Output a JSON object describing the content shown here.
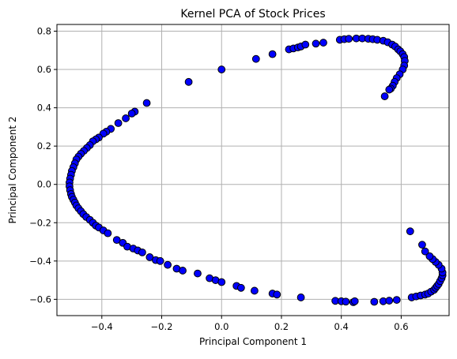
{
  "chart_data": {
    "type": "scatter",
    "title": "Kernel PCA of Stock Prices",
    "xlabel": "Principal Component 1",
    "ylabel": "Principal Component 2",
    "xlim": [
      -0.55,
      0.76
    ],
    "ylim": [
      -0.685,
      0.835
    ],
    "xticks": [
      -0.4,
      -0.2,
      0.0,
      0.2,
      0.4,
      0.6
    ],
    "xtick_labels": [
      "−0.4",
      "−0.2",
      "0.0",
      "0.2",
      "0.4",
      "0.6"
    ],
    "yticks": [
      -0.6,
      -0.4,
      -0.2,
      0.0,
      0.2,
      0.4,
      0.6,
      0.8
    ],
    "ytick_labels": [
      "−0.6",
      "−0.4",
      "−0.2",
      "0.0",
      "0.2",
      "0.4",
      "0.6",
      "0.8"
    ],
    "grid": true,
    "marker_color": "#0000ff",
    "marker_edge_color": "#000000",
    "points": [
      [
        0.0,
        0.6
      ],
      [
        -0.11,
        0.535
      ],
      [
        -0.25,
        0.425
      ],
      [
        -0.29,
        0.38
      ],
      [
        -0.3,
        0.37
      ],
      [
        -0.32,
        0.345
      ],
      [
        -0.345,
        0.32
      ],
      [
        -0.37,
        0.29
      ],
      [
        -0.385,
        0.275
      ],
      [
        -0.395,
        0.265
      ],
      [
        -0.41,
        0.245
      ],
      [
        -0.42,
        0.235
      ],
      [
        -0.43,
        0.225
      ],
      [
        -0.44,
        0.205
      ],
      [
        -0.45,
        0.19
      ],
      [
        -0.46,
        0.175
      ],
      [
        -0.47,
        0.16
      ],
      [
        -0.478,
        0.145
      ],
      [
        -0.485,
        0.13
      ],
      [
        -0.49,
        0.11
      ],
      [
        -0.495,
        0.09
      ],
      [
        -0.5,
        0.07
      ],
      [
        -0.503,
        0.05
      ],
      [
        -0.506,
        0.03
      ],
      [
        -0.508,
        0.01
      ],
      [
        -0.508,
        -0.01
      ],
      [
        -0.506,
        -0.03
      ],
      [
        -0.503,
        -0.05
      ],
      [
        -0.5,
        -0.065
      ],
      [
        -0.495,
        -0.08
      ],
      [
        -0.49,
        -0.095
      ],
      [
        -0.485,
        -0.11
      ],
      [
        -0.478,
        -0.125
      ],
      [
        -0.47,
        -0.14
      ],
      [
        -0.462,
        -0.155
      ],
      [
        -0.452,
        -0.17
      ],
      [
        -0.44,
        -0.185
      ],
      [
        -0.43,
        -0.2
      ],
      [
        -0.42,
        -0.215
      ],
      [
        -0.41,
        -0.225
      ],
      [
        -0.395,
        -0.24
      ],
      [
        -0.38,
        -0.255
      ],
      [
        -0.35,
        -0.29
      ],
      [
        -0.33,
        -0.305
      ],
      [
        -0.315,
        -0.325
      ],
      [
        -0.295,
        -0.335
      ],
      [
        -0.28,
        -0.345
      ],
      [
        -0.265,
        -0.355
      ],
      [
        -0.24,
        -0.38
      ],
      [
        -0.22,
        -0.395
      ],
      [
        -0.205,
        -0.4
      ],
      [
        -0.18,
        -0.42
      ],
      [
        -0.15,
        -0.44
      ],
      [
        -0.13,
        -0.45
      ],
      [
        -0.08,
        -0.465
      ],
      [
        -0.04,
        -0.49
      ],
      [
        -0.02,
        -0.5
      ],
      [
        0.0,
        -0.51
      ],
      [
        0.05,
        -0.53
      ],
      [
        0.065,
        -0.54
      ],
      [
        0.11,
        -0.555
      ],
      [
        0.17,
        -0.57
      ],
      [
        0.185,
        -0.575
      ],
      [
        0.265,
        -0.59
      ],
      [
        0.38,
        -0.608
      ],
      [
        0.4,
        -0.61
      ],
      [
        0.415,
        -0.612
      ],
      [
        0.44,
        -0.615
      ],
      [
        0.445,
        -0.61
      ],
      [
        0.51,
        -0.613
      ],
      [
        0.54,
        -0.61
      ],
      [
        0.56,
        -0.607
      ],
      [
        0.585,
        -0.603
      ],
      [
        0.635,
        -0.59
      ],
      [
        0.65,
        -0.585
      ],
      [
        0.665,
        -0.58
      ],
      [
        0.68,
        -0.575
      ],
      [
        0.69,
        -0.57
      ],
      [
        0.7,
        -0.56
      ],
      [
        0.71,
        -0.55
      ],
      [
        0.715,
        -0.54
      ],
      [
        0.72,
        -0.53
      ],
      [
        0.725,
        -0.52
      ],
      [
        0.73,
        -0.505
      ],
      [
        0.735,
        -0.49
      ],
      [
        0.738,
        -0.475
      ],
      [
        0.738,
        -0.46
      ],
      [
        0.735,
        -0.44
      ],
      [
        0.725,
        -0.42
      ],
      [
        0.715,
        -0.405
      ],
      [
        0.705,
        -0.39
      ],
      [
        0.695,
        -0.375
      ],
      [
        0.68,
        -0.35
      ],
      [
        0.67,
        -0.315
      ],
      [
        0.63,
        -0.245
      ],
      [
        0.115,
        0.655
      ],
      [
        0.17,
        0.68
      ],
      [
        0.225,
        0.705
      ],
      [
        0.24,
        0.71
      ],
      [
        0.255,
        0.715
      ],
      [
        0.265,
        0.72
      ],
      [
        0.28,
        0.73
      ],
      [
        0.315,
        0.735
      ],
      [
        0.34,
        0.74
      ],
      [
        0.395,
        0.755
      ],
      [
        0.41,
        0.758
      ],
      [
        0.425,
        0.76
      ],
      [
        0.45,
        0.762
      ],
      [
        0.47,
        0.762
      ],
      [
        0.49,
        0.76
      ],
      [
        0.505,
        0.758
      ],
      [
        0.52,
        0.755
      ],
      [
        0.54,
        0.75
      ],
      [
        0.555,
        0.742
      ],
      [
        0.57,
        0.73
      ],
      [
        0.58,
        0.72
      ],
      [
        0.59,
        0.705
      ],
      [
        0.597,
        0.695
      ],
      [
        0.605,
        0.68
      ],
      [
        0.61,
        0.665
      ],
      [
        0.612,
        0.645
      ],
      [
        0.61,
        0.62
      ],
      [
        0.605,
        0.6
      ],
      [
        0.595,
        0.575
      ],
      [
        0.585,
        0.555
      ],
      [
        0.578,
        0.535
      ],
      [
        0.572,
        0.515
      ],
      [
        0.565,
        0.5
      ],
      [
        0.56,
        0.495
      ],
      [
        0.545,
        0.46
      ]
    ]
  }
}
